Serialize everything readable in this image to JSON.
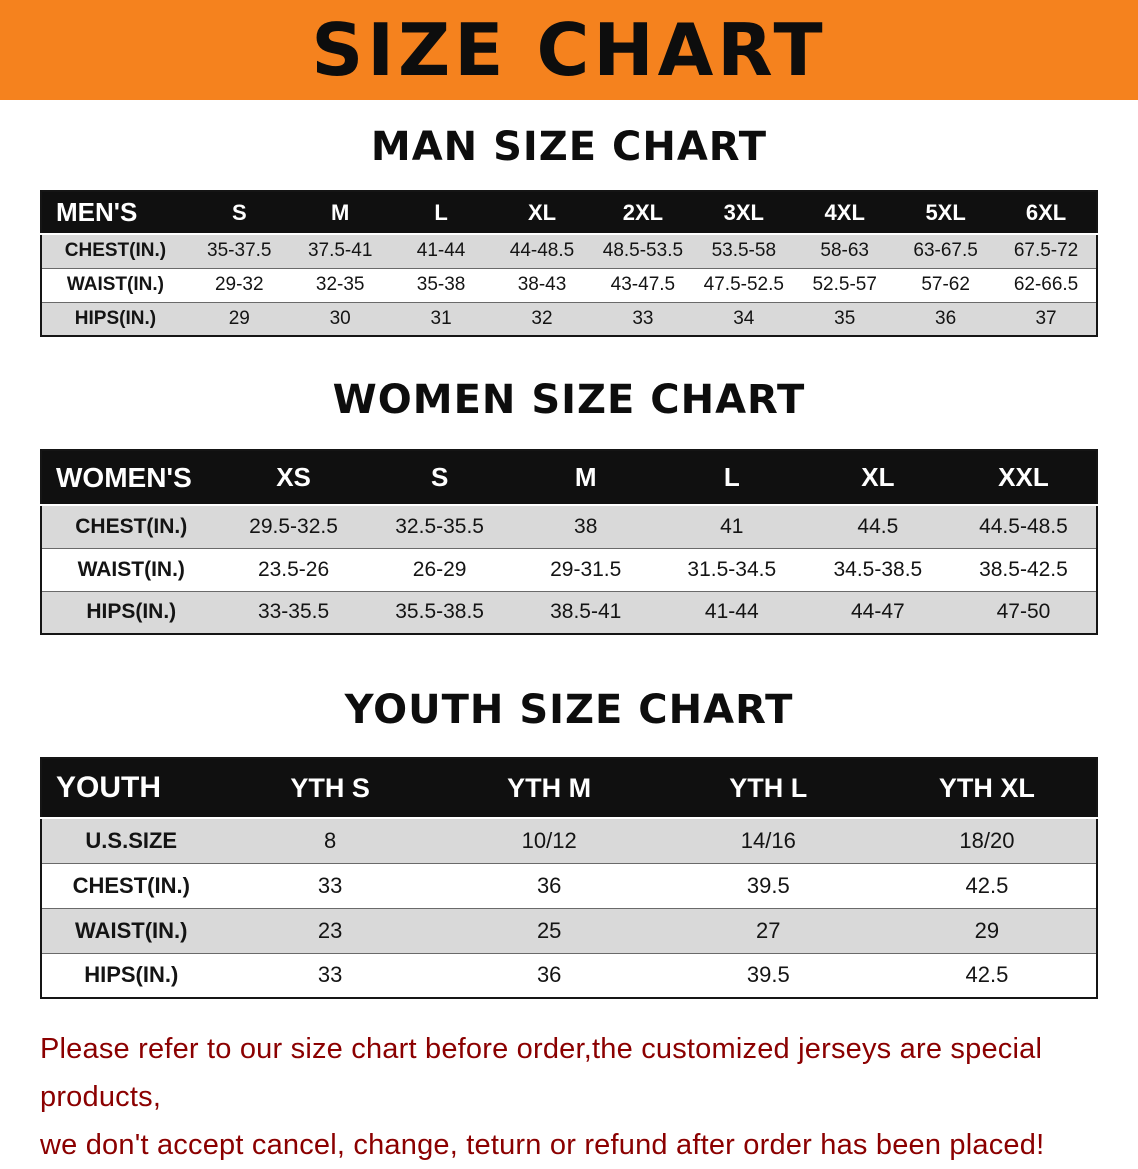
{
  "banner": {
    "title": "SIZE CHART"
  },
  "colors": {
    "banner_bg": "#F5821E",
    "banner_text": "#0d0d0d",
    "header_bg": "#101010",
    "header_text": "#ffffff",
    "stripe_bg": "#d9d9d9",
    "footer_text": "#8B0000"
  },
  "chart_data": [
    {
      "type": "table",
      "title": "MAN SIZE CHART",
      "corner_label": "MEN'S",
      "columns": [
        "S",
        "M",
        "L",
        "XL",
        "2XL",
        "3XL",
        "4XL",
        "5XL",
        "6XL"
      ],
      "rows": [
        {
          "label": "CHEST(IN.)",
          "values": [
            "35-37.5",
            "37.5-41",
            "41-44",
            "44-48.5",
            "48.5-53.5",
            "53.5-58",
            "58-63",
            "63-67.5",
            "67.5-72"
          ]
        },
        {
          "label": "WAIST(IN.)",
          "values": [
            "29-32",
            "32-35",
            "35-38",
            "38-43",
            "43-47.5",
            "47.5-52.5",
            "52.5-57",
            "57-62",
            "62-66.5"
          ]
        },
        {
          "label": "HIPS(IN.)",
          "values": [
            "29",
            "30",
            "31",
            "32",
            "33",
            "34",
            "35",
            "36",
            "37"
          ]
        }
      ]
    },
    {
      "type": "table",
      "title": "WOMEN SIZE CHART",
      "corner_label": "WOMEN'S",
      "columns": [
        "XS",
        "S",
        "M",
        "L",
        "XL",
        "XXL"
      ],
      "rows": [
        {
          "label": "CHEST(IN.)",
          "values": [
            "29.5-32.5",
            "32.5-35.5",
            "38",
            "41",
            "44.5",
            "44.5-48.5"
          ]
        },
        {
          "label": "WAIST(IN.)",
          "values": [
            "23.5-26",
            "26-29",
            "29-31.5",
            "31.5-34.5",
            "34.5-38.5",
            "38.5-42.5"
          ]
        },
        {
          "label": "HIPS(IN.)",
          "values": [
            "33-35.5",
            "35.5-38.5",
            "38.5-41",
            "41-44",
            "44-47",
            "47-50"
          ]
        }
      ]
    },
    {
      "type": "table",
      "title": "YOUTH SIZE CHART",
      "corner_label": "YOUTH",
      "columns": [
        "YTH S",
        "YTH M",
        "YTH L",
        "YTH XL"
      ],
      "rows": [
        {
          "label": "U.S.SIZE",
          "values": [
            "8",
            "10/12",
            "14/16",
            "18/20"
          ]
        },
        {
          "label": "CHEST(IN.)",
          "values": [
            "33",
            "36",
            "39.5",
            "42.5"
          ]
        },
        {
          "label": "WAIST(IN.)",
          "values": [
            "23",
            "25",
            "27",
            "29"
          ]
        },
        {
          "label": "HIPS(IN.)",
          "values": [
            "33",
            "36",
            "39.5",
            "42.5"
          ]
        }
      ]
    }
  ],
  "footer": {
    "line1": "Please refer to our size chart before order,the customized jerseys are special products,",
    "line2": "we don't accept cancel, change, teturn or refund after order has been placed!"
  }
}
